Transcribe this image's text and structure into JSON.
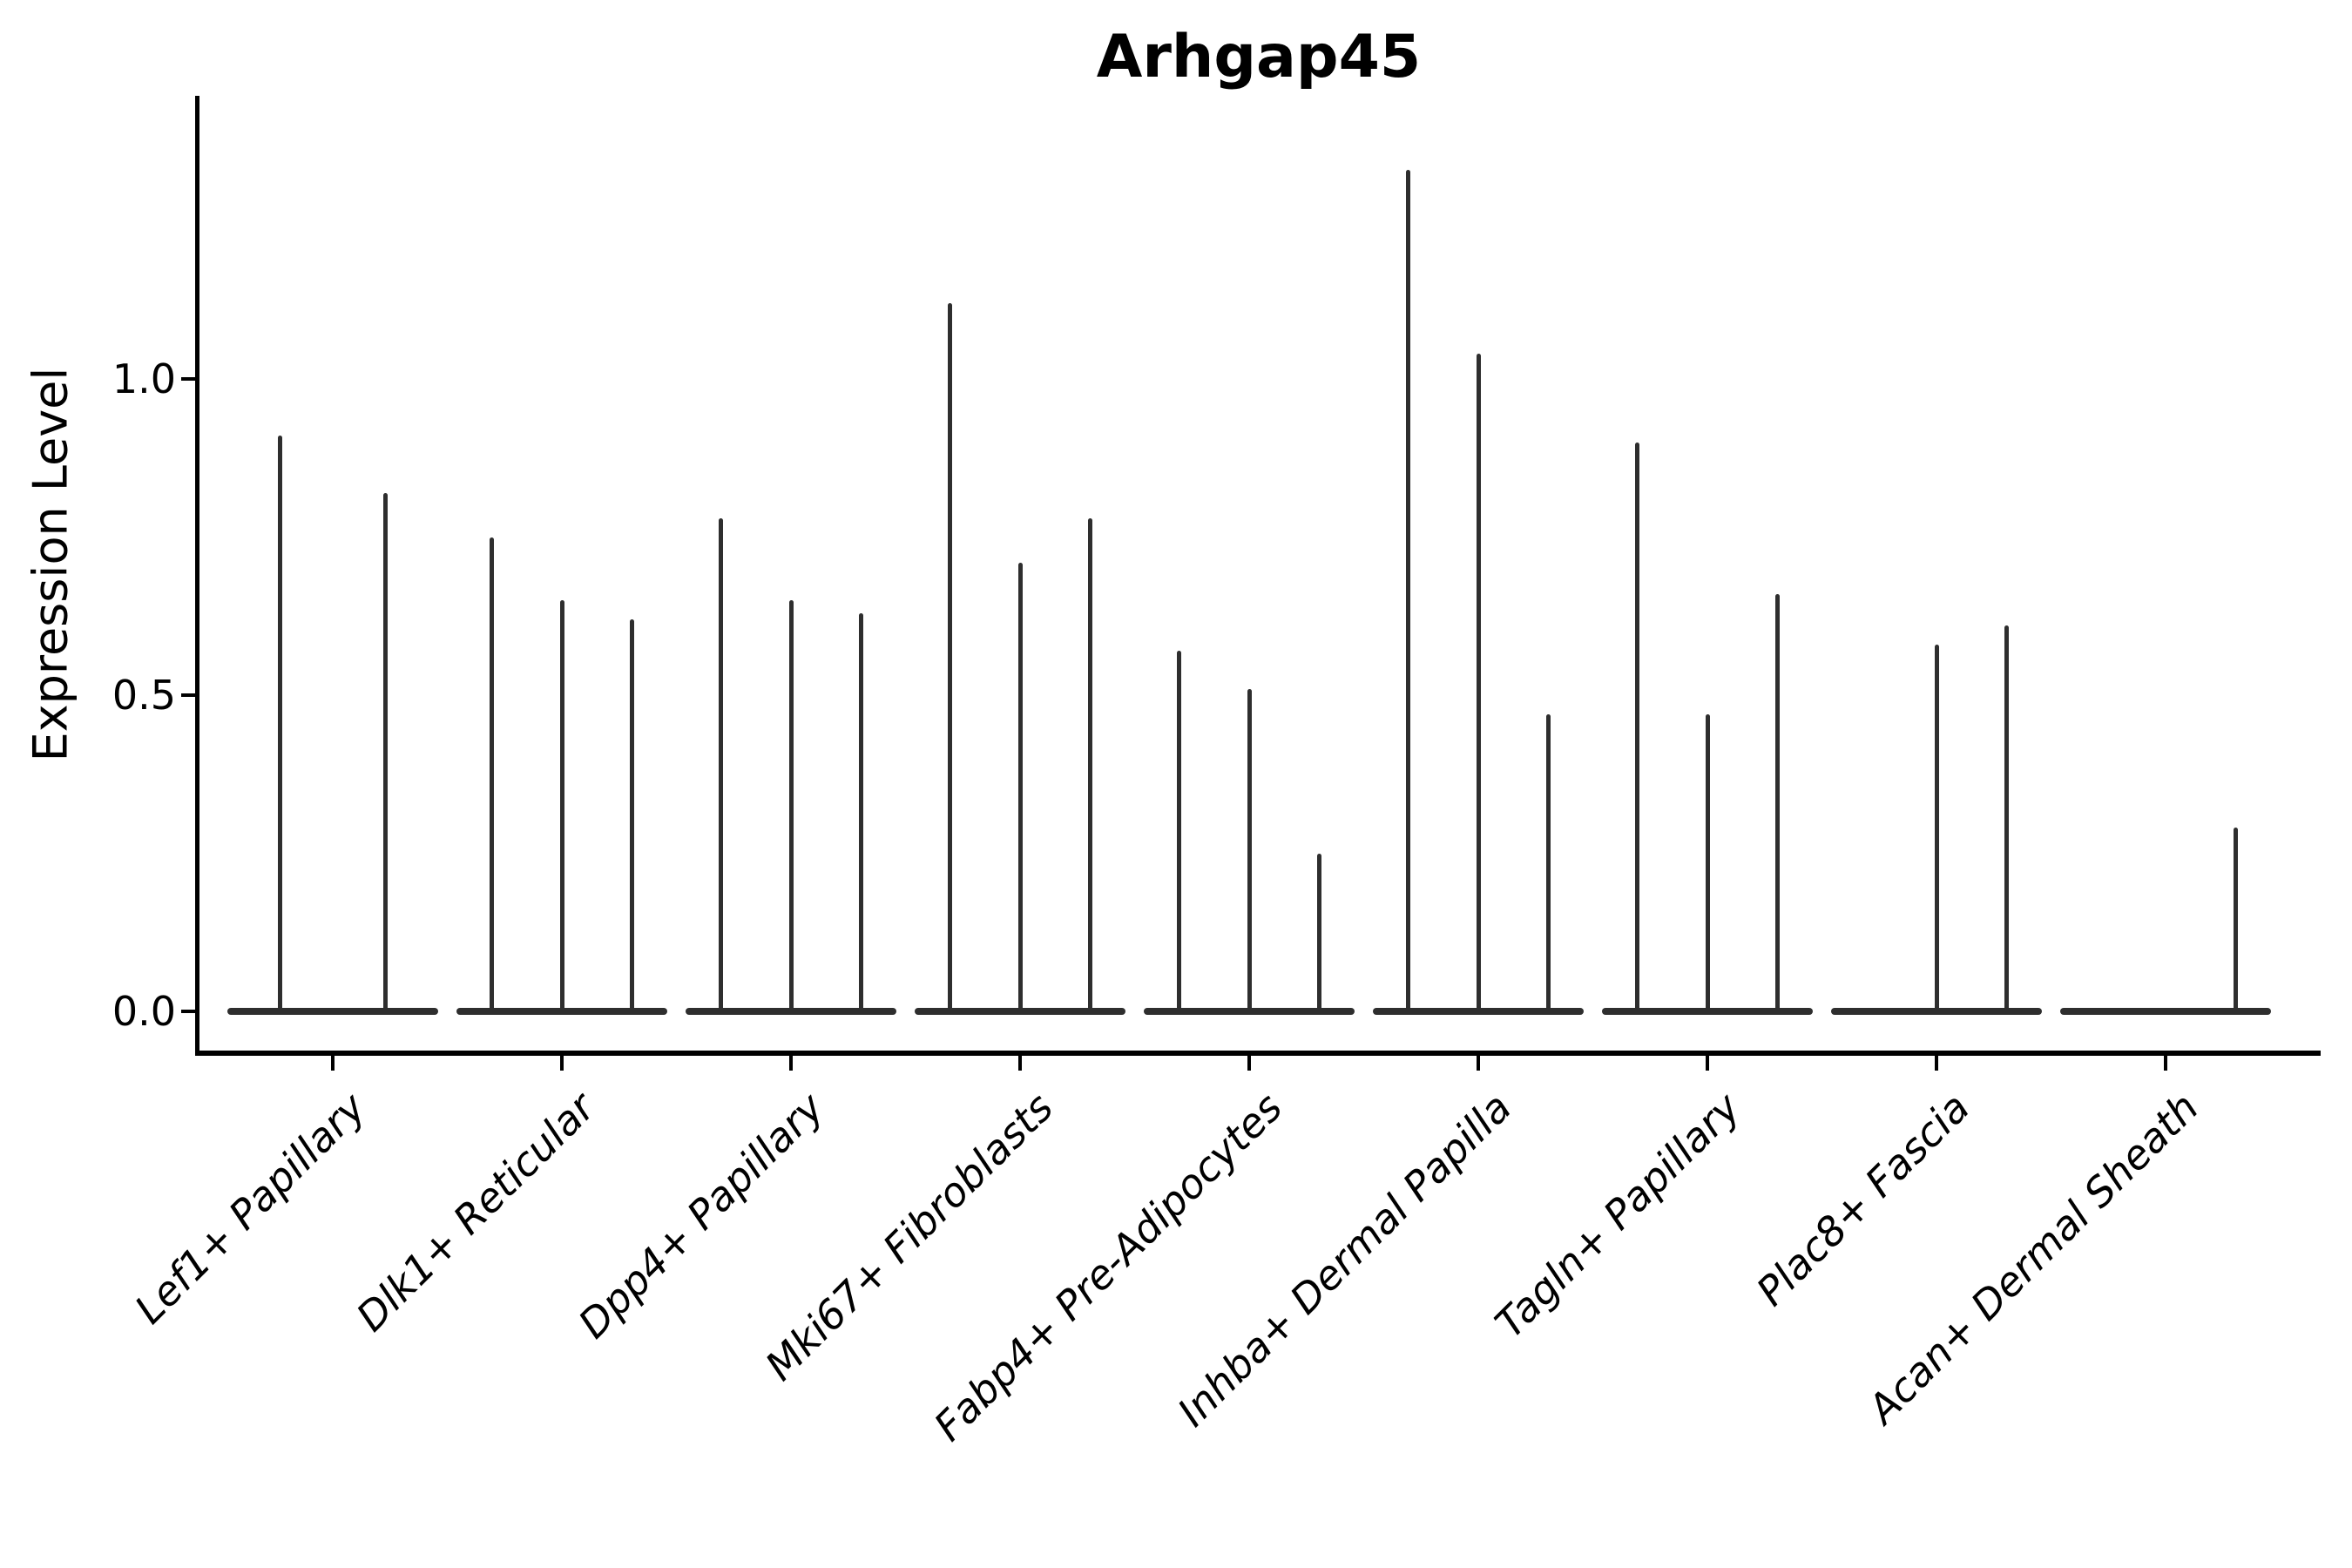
{
  "chart_data": {
    "type": "violin",
    "title": "Arhgap45",
    "xlabel": "",
    "ylabel": "Expression Level",
    "ytick_labels": [
      "0.0",
      "0.5",
      "1.0"
    ],
    "ytick_values": [
      0.0,
      0.5,
      1.0
    ],
    "ylim": [
      0,
      1.45
    ],
    "grid": false,
    "legend": "none",
    "description": "Needle-style violin plot (Seurat VlnPlot look): each category shows 2-3 narrow zero-inflated violins (flat wide base at 0 with a thin spike to the max expression value).",
    "categories": [
      {
        "label": "Lef1+ Papillary",
        "violin_max_values": [
          0.91,
          0.82
        ]
      },
      {
        "label": "Dlk1+ Reticular",
        "violin_max_values": [
          0.75,
          0.65,
          0.62
        ]
      },
      {
        "label": "Dpp4+ Papillary",
        "violin_max_values": [
          0.78,
          0.65,
          0.63
        ]
      },
      {
        "label": "Mki67+ Fibroblasts",
        "violin_max_values": [
          1.12,
          0.71,
          0.78
        ]
      },
      {
        "label": "Fabp4+ Pre-Adipocytes",
        "violin_max_values": [
          0.57,
          0.51,
          0.25
        ]
      },
      {
        "label": "Inhba+ Dermal Papilla",
        "violin_max_values": [
          1.33,
          1.04,
          0.47
        ]
      },
      {
        "label": "Tagln+ Papillary",
        "violin_max_values": [
          0.9,
          0.47,
          0.66
        ]
      },
      {
        "label": "Plac8+ Fascia",
        "violin_max_values": [
          0.0,
          0.58,
          0.61
        ]
      },
      {
        "label": "Acan+ Dermal Sheath",
        "violin_max_values": [
          0.0,
          0.0,
          0.29
        ]
      }
    ],
    "ink_color": "#2e2e2e",
    "spine_color": "#000000",
    "text_color": "#000000",
    "background": "#ffffff"
  }
}
